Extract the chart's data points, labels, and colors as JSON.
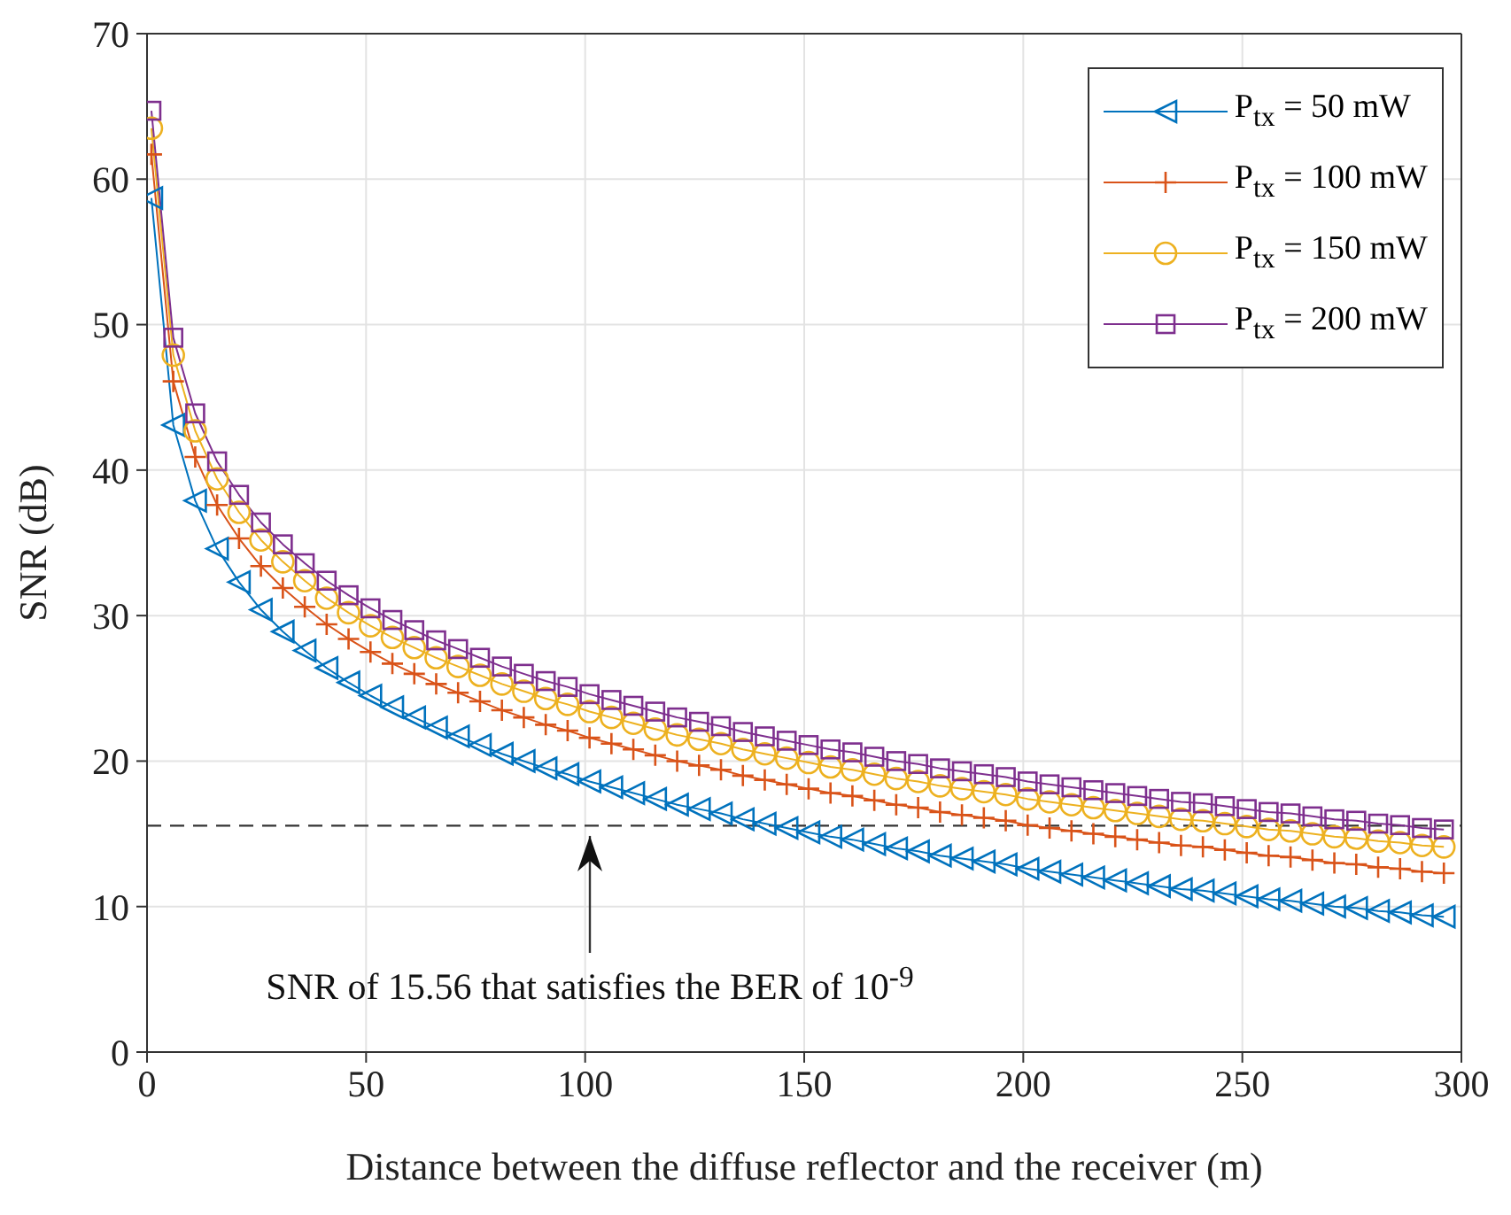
{
  "chart_data": {
    "type": "line",
    "xlabel": "Distance between the diffuse reflector and the receiver (m)",
    "ylabel": "SNR (dB)",
    "x": [
      1,
      6,
      11,
      16,
      21,
      26,
      31,
      36,
      41,
      46,
      51,
      56,
      61,
      66,
      71,
      76,
      81,
      86,
      91,
      96,
      101,
      106,
      111,
      116,
      121,
      126,
      131,
      136,
      141,
      146,
      151,
      156,
      161,
      166,
      171,
      176,
      181,
      186,
      191,
      196,
      201,
      206,
      211,
      216,
      221,
      226,
      231,
      236,
      241,
      246,
      251,
      256,
      261,
      266,
      271,
      276,
      281,
      286,
      291,
      296
    ],
    "series": [
      {
        "name": "P$_{tx}$ = 50 mW",
        "color": "#0072bd",
        "marker": "triangle",
        "values": [
          58.7,
          43.1,
          37.9,
          34.6,
          32.3,
          30.4,
          28.9,
          27.6,
          26.4,
          25.4,
          24.5,
          23.7,
          23.0,
          22.3,
          21.7,
          21.1,
          20.5,
          20.0,
          19.5,
          19.1,
          18.6,
          18.2,
          17.8,
          17.4,
          17.0,
          16.7,
          16.4,
          16.0,
          15.7,
          15.4,
          15.1,
          14.8,
          14.6,
          14.3,
          14.0,
          13.8,
          13.5,
          13.3,
          13.1,
          12.9,
          12.6,
          12.4,
          12.2,
          12.0,
          11.8,
          11.6,
          11.4,
          11.2,
          11.1,
          10.9,
          10.7,
          10.5,
          10.4,
          10.2,
          10.0,
          9.9,
          9.7,
          9.6,
          9.4,
          9.3
        ]
      },
      {
        "name": "P$_{tx}$ = 100 mW",
        "color": "#d95319",
        "marker": "cross",
        "values": [
          61.7,
          46.1,
          40.9,
          37.6,
          35.3,
          33.4,
          31.9,
          30.6,
          29.4,
          28.4,
          27.5,
          26.7,
          26.0,
          25.3,
          24.7,
          24.1,
          23.5,
          23.0,
          22.5,
          22.1,
          21.6,
          21.2,
          20.8,
          20.4,
          20.0,
          19.7,
          19.4,
          19.0,
          18.7,
          18.4,
          18.1,
          17.8,
          17.6,
          17.3,
          17.0,
          16.8,
          16.5,
          16.3,
          16.1,
          15.9,
          15.6,
          15.4,
          15.2,
          15.0,
          14.8,
          14.6,
          14.4,
          14.2,
          14.1,
          13.9,
          13.7,
          13.5,
          13.4,
          13.2,
          13.0,
          12.9,
          12.7,
          12.6,
          12.4,
          12.3
        ]
      },
      {
        "name": "P$_{tx}$ = 150 mW",
        "color": "#edb120",
        "marker": "circle",
        "values": [
          63.5,
          47.9,
          42.7,
          39.4,
          37.1,
          35.2,
          33.7,
          32.4,
          31.2,
          30.2,
          29.3,
          28.5,
          27.8,
          27.1,
          26.5,
          25.9,
          25.3,
          24.8,
          24.3,
          23.9,
          23.4,
          23.0,
          22.6,
          22.2,
          21.8,
          21.5,
          21.2,
          20.8,
          20.5,
          20.2,
          19.9,
          19.6,
          19.4,
          19.1,
          18.8,
          18.6,
          18.3,
          18.1,
          17.9,
          17.7,
          17.4,
          17.2,
          17.0,
          16.8,
          16.6,
          16.4,
          16.2,
          16.0,
          15.9,
          15.7,
          15.5,
          15.3,
          15.2,
          15.0,
          14.8,
          14.7,
          14.5,
          14.4,
          14.2,
          14.1
        ]
      },
      {
        "name": "P$_{tx}$ = 200 mW",
        "color": "#7e2f8e",
        "marker": "square",
        "values": [
          64.7,
          49.1,
          43.9,
          40.6,
          38.3,
          36.4,
          34.9,
          33.6,
          32.4,
          31.4,
          30.5,
          29.7,
          29.0,
          28.3,
          27.7,
          27.1,
          26.5,
          26.0,
          25.5,
          25.1,
          24.6,
          24.2,
          23.8,
          23.4,
          23.0,
          22.7,
          22.4,
          22.0,
          21.7,
          21.4,
          21.1,
          20.8,
          20.6,
          20.3,
          20.0,
          19.8,
          19.5,
          19.3,
          19.1,
          18.9,
          18.6,
          18.4,
          18.2,
          18.0,
          17.8,
          17.6,
          17.4,
          17.2,
          17.1,
          16.9,
          16.7,
          16.5,
          16.4,
          16.2,
          16.0,
          15.9,
          15.7,
          15.6,
          15.4,
          15.3
        ]
      }
    ],
    "xlim": [
      0,
      300
    ],
    "xticks": [
      0,
      50,
      100,
      150,
      200,
      250,
      300
    ],
    "ylim": [
      0,
      70
    ],
    "yticks": [
      0,
      10,
      20,
      30,
      40,
      50,
      60,
      70
    ],
    "grid": true,
    "legend": "top right",
    "line_style": "solid",
    "ref_lines": [
      {
        "axis": "y",
        "value": 15.56,
        "color": "#333333",
        "line_style": "dashed"
      }
    ],
    "annotations": [
      "SNR of 15.56 that satisfies the BER of 10$^{-9}$"
    ]
  }
}
